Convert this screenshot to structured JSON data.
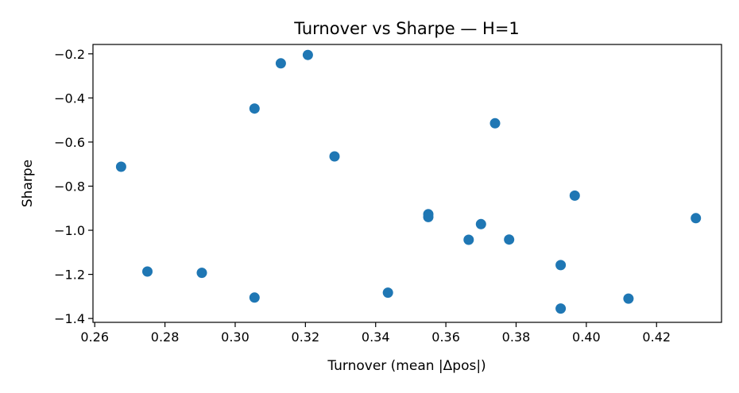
{
  "chart_data": {
    "type": "scatter",
    "title": "Turnover vs Sharpe — H=1",
    "xlabel": "Turnover (mean |Δpos|)",
    "ylabel": "Sharpe",
    "xlim": [
      0.2595,
      0.4385
    ],
    "ylim": [
      -1.4175,
      -0.1575
    ],
    "xticks": [
      0.26,
      0.28,
      0.3,
      0.32,
      0.34,
      0.36,
      0.38,
      0.4,
      0.42
    ],
    "xtick_labels": [
      "0.26",
      "0.28",
      "0.30",
      "0.32",
      "0.34",
      "0.36",
      "0.38",
      "0.40",
      "0.42"
    ],
    "yticks": [
      -0.2,
      -0.4,
      -0.6,
      -0.8,
      -1.0,
      -1.2,
      -1.4
    ],
    "ytick_labels": [
      "−0.2",
      "−0.4",
      "−0.6",
      "−0.8",
      "−1.0",
      "−1.2",
      "−1.4"
    ],
    "grid": false,
    "marker_color": "#1f77b4",
    "points": [
      {
        "x": 0.2675,
        "y": -0.712
      },
      {
        "x": 0.275,
        "y": -1.187
      },
      {
        "x": 0.2905,
        "y": -1.193
      },
      {
        "x": 0.3055,
        "y": -0.448
      },
      {
        "x": 0.3055,
        "y": -1.305
      },
      {
        "x": 0.313,
        "y": -0.243
      },
      {
        "x": 0.3207,
        "y": -0.205
      },
      {
        "x": 0.3283,
        "y": -0.665
      },
      {
        "x": 0.3435,
        "y": -1.283
      },
      {
        "x": 0.355,
        "y": -0.927
      },
      {
        "x": 0.355,
        "y": -0.94
      },
      {
        "x": 0.3665,
        "y": -1.043
      },
      {
        "x": 0.37,
        "y": -0.972
      },
      {
        "x": 0.374,
        "y": -0.515
      },
      {
        "x": 0.378,
        "y": -1.042
      },
      {
        "x": 0.3927,
        "y": -1.158
      },
      {
        "x": 0.3927,
        "y": -1.355
      },
      {
        "x": 0.3967,
        "y": -0.843
      },
      {
        "x": 0.412,
        "y": -1.31
      },
      {
        "x": 0.4312,
        "y": -0.945
      }
    ]
  }
}
